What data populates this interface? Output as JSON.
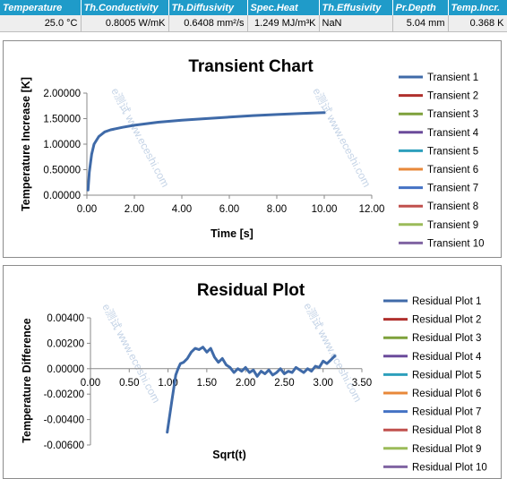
{
  "properties_table": {
    "headers": [
      "Temperature",
      "Th.Conductivity",
      "Th.Diffusivity",
      "Spec.Heat",
      "Th.Effusivity",
      "Pr.Depth",
      "Temp.Incr."
    ],
    "values": [
      "25.0 °C",
      "0.8005 W/mK",
      "0.6408 mm²/s",
      "1.249 MJ/m³K",
      "NaN",
      "5.04 mm",
      "0.368 K"
    ]
  },
  "watermark": [
    "e测试 www.eceshi.com",
    "e测试 www.eceshi.com"
  ],
  "colors": {
    "header_bg": "#1f9bc9",
    "series": [
      "#3f6aa8",
      "#b0302d",
      "#7ea13b",
      "#6b4b9b",
      "#2d9fbc",
      "#e8883a",
      "#4472c4",
      "#c0504d",
      "#9bbb59",
      "#8064a2"
    ]
  },
  "chart_data": [
    {
      "type": "line",
      "title": "Transient Chart",
      "xlabel": "Time [s]",
      "ylabel": "Temperature Increase [K]",
      "xlim": [
        0,
        12
      ],
      "ylim": [
        0,
        2
      ],
      "xticks": [
        "0.00",
        "2.00",
        "4.00",
        "6.00",
        "8.00",
        "10.00",
        "12.00"
      ],
      "yticks": [
        "0.00000",
        "0.50000",
        "1.00000",
        "1.50000",
        "2.00000"
      ],
      "legend": [
        "Transient 1",
        "Transient 2",
        "Transient 3",
        "Transient 4",
        "Transient 5",
        "Transient 6",
        "Transient 7",
        "Transient 8",
        "Transient 9",
        "Transient 10"
      ],
      "legend_position": "right",
      "series": [
        {
          "name": "Transient 1",
          "x": [
            0.05,
            0.1,
            0.2,
            0.3,
            0.5,
            0.75,
            1.0,
            1.5,
            2.0,
            3.0,
            4.0,
            5.0,
            6.0,
            7.0,
            8.0,
            9.0,
            10.0
          ],
          "y": [
            0.1,
            0.45,
            0.8,
            1.0,
            1.15,
            1.24,
            1.28,
            1.33,
            1.37,
            1.43,
            1.47,
            1.5,
            1.53,
            1.56,
            1.58,
            1.6,
            1.62
          ]
        }
      ]
    },
    {
      "type": "line",
      "title": "Residual Plot",
      "xlabel": "Sqrt(t)",
      "ylabel": "Temperature Difference",
      "xlim": [
        0,
        3.5
      ],
      "ylim": [
        -0.006,
        0.004
      ],
      "xticks": [
        "0.00",
        "0.50",
        "1.00",
        "1.50",
        "2.00",
        "2.50",
        "3.00",
        "3.50"
      ],
      "yticks": [
        "-0.00600",
        "-0.00400",
        "-0.00200",
        "0.00000",
        "0.00200",
        "0.00400"
      ],
      "legend": [
        "Residual Plot 1",
        "Residual Plot 2",
        "Residual Plot 3",
        "Residual Plot 4",
        "Residual Plot 5",
        "Residual Plot 6",
        "Residual Plot 7",
        "Residual Plot 8",
        "Residual Plot 9",
        "Residual Plot 10"
      ],
      "legend_position": "right",
      "series": [
        {
          "name": "Residual Plot 1",
          "x": [
            0.99,
            1.05,
            1.1,
            1.13,
            1.16,
            1.2,
            1.25,
            1.3,
            1.35,
            1.4,
            1.45,
            1.5,
            1.55,
            1.6,
            1.65,
            1.7,
            1.75,
            1.8,
            1.85,
            1.9,
            1.95,
            2.0,
            2.05,
            2.1,
            2.15,
            2.2,
            2.25,
            2.3,
            2.35,
            2.4,
            2.45,
            2.5,
            2.55,
            2.6,
            2.65,
            2.7,
            2.75,
            2.8,
            2.85,
            2.9,
            2.95,
            3.0,
            3.05,
            3.1,
            3.15
          ],
          "y": [
            -0.005,
            -0.0025,
            -0.0005,
            0.0,
            0.0004,
            0.0005,
            0.0008,
            0.0013,
            0.0016,
            0.0015,
            0.0017,
            0.0013,
            0.0016,
            0.0009,
            0.0005,
            0.0008,
            0.0003,
            0.0001,
            -0.0003,
            0.0,
            -0.0002,
            0.0001,
            -0.0003,
            -0.0001,
            -0.0006,
            -0.0002,
            -0.0004,
            -0.0001,
            -0.0005,
            -0.0003,
            0.0,
            -0.0004,
            -0.0002,
            -0.0003,
            0.0001,
            -0.0001,
            -0.0003,
            0.0,
            -0.0002,
            0.0002,
            0.0001,
            0.0006,
            0.0004,
            0.0007,
            0.001
          ]
        }
      ]
    }
  ]
}
